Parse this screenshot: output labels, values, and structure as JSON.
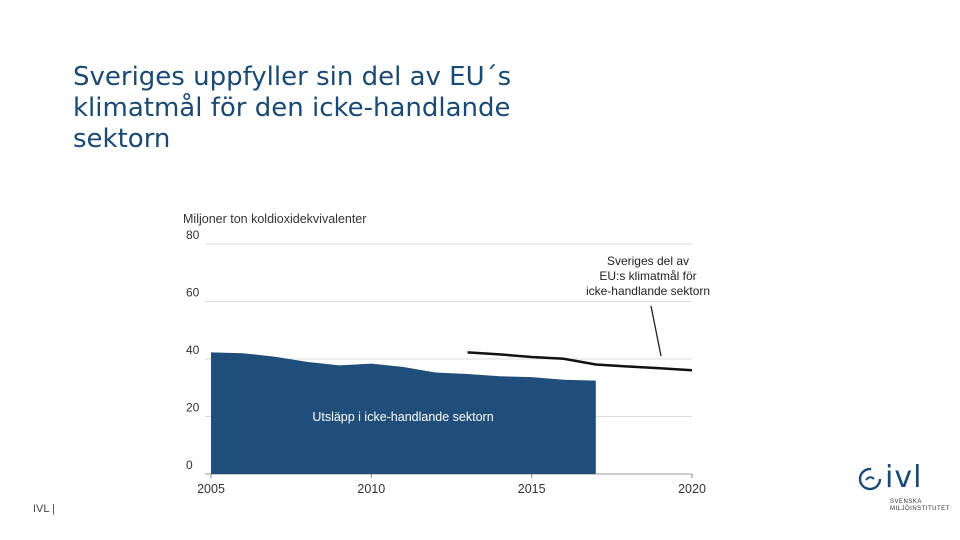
{
  "slide": {
    "title": "Sveriges uppfyller sin del av EU´s\nklimatmål för den icke-handlande\nsektorn",
    "footer": "IVL |"
  },
  "logo": {
    "wordmark": "ivl",
    "subtitle_line1": "SVENSKA",
    "subtitle_line2": "MILJÖINSTITUTET",
    "color": "#1a4a73"
  },
  "chart_data": {
    "type": "area",
    "title": "Miljoner ton koldioxidekvivalenter",
    "xlabel": "",
    "ylabel": "",
    "xlim": [
      2005,
      2020
    ],
    "ylim": [
      0,
      80
    ],
    "x_ticks": [
      2005,
      2010,
      2015,
      2020
    ],
    "y_ticks": [
      0,
      20,
      40,
      60,
      80
    ],
    "grid": true,
    "series": [
      {
        "name": "Utsläpp i icke-handlande sektorn",
        "kind": "area",
        "color": "#1f4e7a",
        "x": [
          2005,
          2006,
          2007,
          2008,
          2009,
          2010,
          2011,
          2012,
          2013,
          2014,
          2015,
          2016,
          2017
        ],
        "values": [
          42.3,
          42.0,
          40.8,
          39.0,
          37.8,
          38.4,
          37.2,
          35.3,
          34.8,
          34.0,
          33.7,
          32.8,
          32.5
        ]
      },
      {
        "name": "Sveriges del av EU:s klimatmål för icke-handlande sektorn",
        "kind": "line",
        "color": "#111111",
        "x": [
          2013,
          2014,
          2015,
          2016,
          2017,
          2018,
          2019,
          2020
        ],
        "values": [
          42.3,
          41.6,
          40.7,
          40.1,
          38.1,
          37.4,
          36.8,
          36.1
        ]
      }
    ],
    "annotations": [
      {
        "text": "Utsläpp i icke-handlande sektorn",
        "series": 0
      },
      {
        "text": "Sveriges del av\nEU:s klimatmål för\nicke-handlande sektorn",
        "series": 1,
        "arrow_to_x": 2018.5
      }
    ]
  }
}
